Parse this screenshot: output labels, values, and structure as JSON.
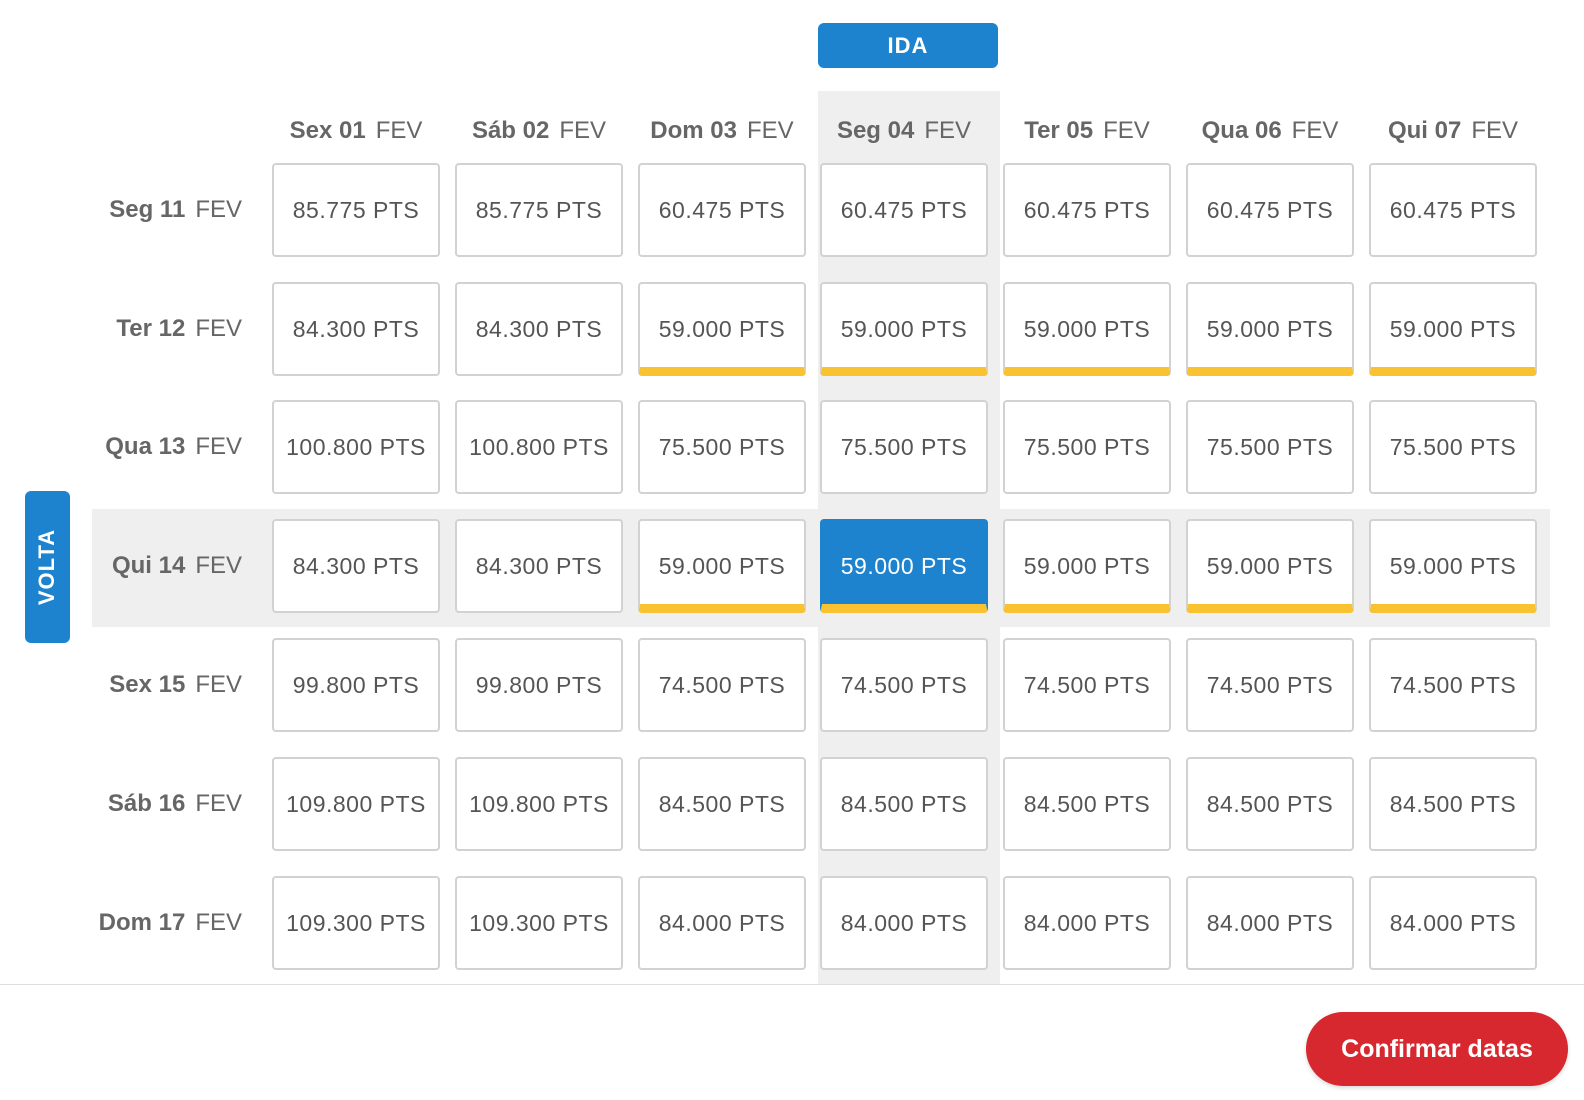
{
  "outbound_label": "IDA",
  "return_label": "VOLTA",
  "confirm_label": "Confirmar datas",
  "colors": {
    "primary": "#1e83cf",
    "best_price": "#f8c231",
    "confirm": "#d7272f",
    "band": "#efefef"
  },
  "columns": [
    {
      "day": "Sex 01",
      "month": "FEV"
    },
    {
      "day": "Sáb 02",
      "month": "FEV"
    },
    {
      "day": "Dom 03",
      "month": "FEV"
    },
    {
      "day": "Seg 04",
      "month": "FEV"
    },
    {
      "day": "Ter 05",
      "month": "FEV"
    },
    {
      "day": "Qua 06",
      "month": "FEV"
    },
    {
      "day": "Qui 07",
      "month": "FEV"
    }
  ],
  "rows": [
    {
      "day": "Seg 11",
      "month": "FEV",
      "prices": [
        "85.775 PTS",
        "85.775 PTS",
        "60.475 PTS",
        "60.475 PTS",
        "60.475 PTS",
        "60.475 PTS",
        "60.475 PTS"
      ]
    },
    {
      "day": "Ter 12",
      "month": "FEV",
      "prices": [
        "84.300 PTS",
        "84.300 PTS",
        "59.000 PTS",
        "59.000 PTS",
        "59.000 PTS",
        "59.000 PTS",
        "59.000 PTS"
      ]
    },
    {
      "day": "Qua 13",
      "month": "FEV",
      "prices": [
        "100.800 PTS",
        "100.800 PTS",
        "75.500 PTS",
        "75.500 PTS",
        "75.500 PTS",
        "75.500 PTS",
        "75.500 PTS"
      ]
    },
    {
      "day": "Qui 14",
      "month": "FEV",
      "prices": [
        "84.300 PTS",
        "84.300 PTS",
        "59.000 PTS",
        "59.000 PTS",
        "59.000 PTS",
        "59.000 PTS",
        "59.000 PTS"
      ]
    },
    {
      "day": "Sex 15",
      "month": "FEV",
      "prices": [
        "99.800 PTS",
        "99.800 PTS",
        "74.500 PTS",
        "74.500 PTS",
        "74.500 PTS",
        "74.500 PTS",
        "74.500 PTS"
      ]
    },
    {
      "day": "Sáb 16",
      "month": "FEV",
      "prices": [
        "109.800 PTS",
        "109.800 PTS",
        "84.500 PTS",
        "84.500 PTS",
        "84.500 PTS",
        "84.500 PTS",
        "84.500 PTS"
      ]
    },
    {
      "day": "Dom 17",
      "month": "FEV",
      "prices": [
        "109.300 PTS",
        "109.300 PTS",
        "84.000 PTS",
        "84.000 PTS",
        "84.000 PTS",
        "84.000 PTS",
        "84.000 PTS"
      ]
    }
  ],
  "best_price_rows": [
    1,
    3
  ],
  "best_price_cols": [
    2,
    3,
    4,
    5,
    6
  ],
  "selected": {
    "row": 3,
    "col": 3
  }
}
